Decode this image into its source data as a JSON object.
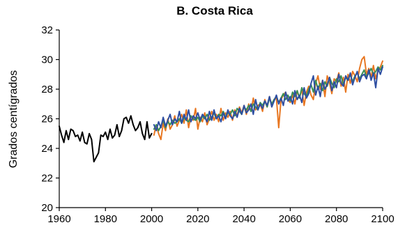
{
  "chart_data": {
    "type": "line",
    "title": "B. Costa Rica",
    "xlabel": "",
    "ylabel": "Grados centígrados",
    "xlim": [
      1960,
      2100
    ],
    "ylim": [
      20,
      32
    ],
    "x_ticks": [
      1960,
      1980,
      2000,
      2020,
      2040,
      2060,
      2080,
      2100
    ],
    "y_ticks": [
      20,
      22,
      24,
      26,
      28,
      30,
      32
    ],
    "x_tick_labels": [
      "1960",
      "1980",
      "2000",
      "2020",
      "2040",
      "2060",
      "2080",
      "2100"
    ],
    "y_tick_labels": [
      "20",
      "22",
      "24",
      "26",
      "28",
      "30",
      "32"
    ],
    "grid": false,
    "legend": "none",
    "series": [
      {
        "color": "#000000",
        "x_start": 1960,
        "x_step": 1,
        "values": [
          25.5,
          24.9,
          24.4,
          25.2,
          24.6,
          25.3,
          25.2,
          24.8,
          24.9,
          24.5,
          25.1,
          24.4,
          24.3,
          25.0,
          24.6,
          23.1,
          23.4,
          23.7,
          24.9,
          24.8,
          25.1,
          24.6,
          25.3,
          24.7,
          24.9,
          25.6,
          24.8,
          25.2,
          26.0,
          26.1,
          25.7,
          26.2,
          25.6,
          25.2,
          25.4,
          25.8,
          25.0,
          24.6,
          25.8,
          24.7,
          25.0
        ]
      },
      {
        "color": "#E87722",
        "x_start": 2001,
        "x_step": 1,
        "values": [
          24.9,
          25.6,
          25.0,
          24.6,
          25.7,
          25.2,
          26.0,
          25.3,
          25.6,
          26.2,
          25.5,
          25.9,
          26.3,
          25.7,
          26.6,
          25.4,
          26.2,
          25.9,
          26.7,
          25.3,
          26.1,
          25.8,
          26.4,
          25.6,
          26.0,
          26.5,
          25.9,
          26.3,
          25.8,
          26.7,
          25.9,
          26.4,
          26.1,
          26.5,
          25.9,
          26.6,
          26.2,
          26.8,
          26.4,
          26.9,
          26.3,
          27.0,
          26.5,
          27.4,
          26.6,
          26.9,
          27.0,
          26.5,
          27.3,
          26.8,
          27.5,
          26.9,
          27.3,
          27.4,
          25.4,
          27.3,
          27.6,
          27.8,
          27.3,
          27.1,
          27.6,
          27.0,
          27.9,
          27.4,
          28.0,
          26.9,
          27.8,
          28.2,
          27.6,
          27.3,
          28.4,
          28.9,
          28.0,
          28.6,
          27.5,
          28.9,
          28.4,
          27.7,
          28.7,
          28.5,
          29.1,
          28.2,
          28.8,
          27.8,
          29.0,
          28.4,
          29.2,
          28.9,
          28.5,
          29.4,
          30.0,
          30.2,
          29.0,
          29.4,
          28.8,
          29.6,
          28.7,
          29.3,
          29.5,
          29.9
        ]
      },
      {
        "color": "#3A8F56",
        "x_start": 2001,
        "x_step": 1,
        "values": [
          25.3,
          25.6,
          25.2,
          25.5,
          25.9,
          25.4,
          25.8,
          25.6,
          25.9,
          25.7,
          25.8,
          26.0,
          25.7,
          26.1,
          25.9,
          25.8,
          26.2,
          26.0,
          25.9,
          26.1,
          25.8,
          26.2,
          26.0,
          26.3,
          25.9,
          26.1,
          26.4,
          26.0,
          26.3,
          26.2,
          26.5,
          26.1,
          26.4,
          26.3,
          26.6,
          26.2,
          26.7,
          26.5,
          26.3,
          26.8,
          26.6,
          26.9,
          26.5,
          27.0,
          26.8,
          26.6,
          27.1,
          26.9,
          27.2,
          26.8,
          27.4,
          27.0,
          27.3,
          27.5,
          27.1,
          27.4,
          27.7,
          27.3,
          27.6,
          27.2,
          27.8,
          27.5,
          27.9,
          27.4,
          28.1,
          27.7,
          27.5,
          28.0,
          28.3,
          27.8,
          28.6,
          28.0,
          28.4,
          27.9,
          28.5,
          28.2,
          28.8,
          28.4,
          28.1,
          28.7,
          28.5,
          28.9,
          28.3,
          28.8,
          28.6,
          29.0,
          28.5,
          28.9,
          29.1,
          28.7,
          29.0,
          29.3,
          28.8,
          29.1,
          29.4,
          29.0,
          29.2,
          29.5,
          29.3,
          29.6
        ]
      },
      {
        "color": "#2F4FA2",
        "x_start": 2001,
        "x_step": 1,
        "values": [
          25.6,
          25.2,
          25.8,
          25.4,
          26.1,
          25.5,
          25.9,
          26.3,
          25.6,
          26.0,
          25.8,
          26.5,
          25.7,
          26.3,
          25.9,
          26.6,
          25.8,
          26.2,
          26.0,
          26.4,
          25.9,
          26.3,
          26.1,
          25.8,
          26.5,
          25.9,
          26.6,
          26.0,
          26.2,
          25.8,
          26.4,
          26.0,
          26.6,
          26.2,
          26.0,
          26.5,
          26.1,
          26.7,
          26.3,
          26.9,
          26.4,
          26.6,
          27.0,
          26.3,
          27.3,
          26.6,
          27.0,
          26.7,
          27.2,
          26.9,
          27.5,
          26.8,
          27.2,
          27.6,
          27.0,
          27.4,
          26.9,
          27.8,
          27.2,
          27.5,
          27.0,
          27.9,
          27.3,
          27.6,
          27.1,
          28.1,
          27.4,
          27.7,
          28.4,
          28.9,
          27.6,
          28.2,
          27.5,
          28.6,
          28.0,
          28.3,
          28.8,
          27.9,
          28.5,
          28.1,
          29.0,
          28.4,
          28.2,
          28.9,
          28.6,
          29.1,
          28.3,
          28.8,
          29.2,
          28.5,
          28.9,
          29.0,
          28.7,
          29.3,
          28.6,
          29.1,
          28.1,
          29.4,
          29.0,
          29.5
        ]
      }
    ]
  }
}
